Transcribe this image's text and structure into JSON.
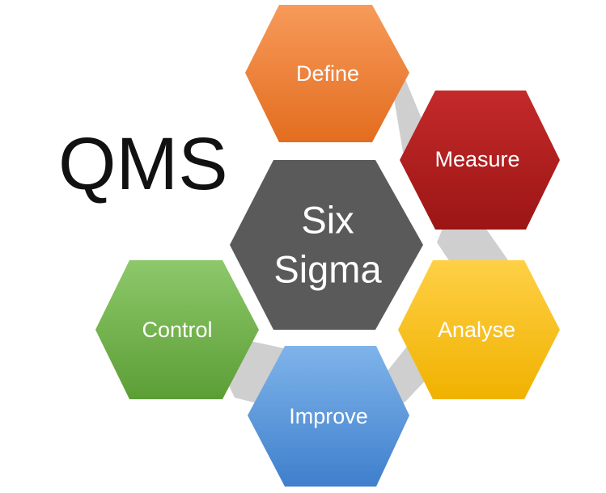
{
  "title": "QMS",
  "center": {
    "line1": "Six",
    "line2": "Sigma",
    "color": "#5a5a5a"
  },
  "steps": [
    {
      "label": "Define",
      "color_top": "#f79a5a",
      "color_bottom": "#e36d1f"
    },
    {
      "label": "Measure",
      "color_top": "#c42a2a",
      "color_bottom": "#9c1515"
    },
    {
      "label": "Analyse",
      "color_top": "#ffd046",
      "color_bottom": "#f0b200"
    },
    {
      "label": "Improve",
      "color_top": "#7fb4ea",
      "color_bottom": "#3f7fcc"
    },
    {
      "label": "Control",
      "color_top": "#8dc86a",
      "color_bottom": "#5c9e36"
    }
  ]
}
